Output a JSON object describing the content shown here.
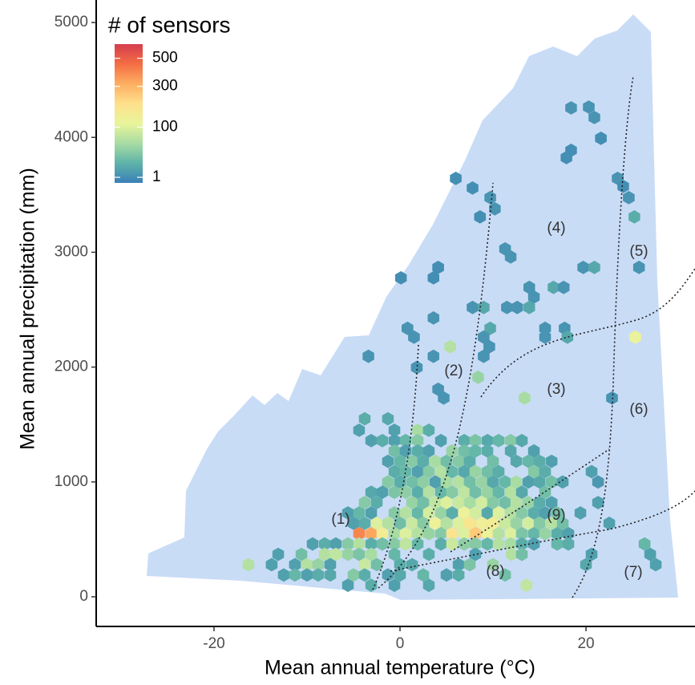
{
  "chart_data": {
    "type": "hexbin",
    "x_label": "Mean annual temperature (°C)",
    "y_label": "Mean annual precipitation (mm)",
    "xlim": [
      -32.67,
      31.72
    ],
    "xticks": [
      -20,
      0,
      20
    ],
    "ylim": [
      -258,
      5196
    ],
    "yticks": [
      0,
      1000,
      2000,
      3000,
      4000,
      5000
    ],
    "grid": false,
    "legend_title": "# of sensors",
    "color_scale": "sqrt",
    "clim": [
      0,
      620
    ],
    "cticks": [
      1,
      100,
      300,
      500
    ],
    "colormap": [
      "#3a7fb8",
      "#5fb3a8",
      "#a8dca3",
      "#e9f59b",
      "#fee08b",
      "#fdae61",
      "#f46d43",
      "#d53e4f"
    ],
    "annotations": [
      "(1)",
      "(2)",
      "(3)",
      "(4)",
      "(5)",
      "(6)",
      "(7)",
      "(8)",
      "(9)"
    ],
    "bins": [
      [
        18.4,
        4257,
        2
      ],
      [
        20.3,
        4264,
        2
      ],
      [
        20.9,
        4173,
        2
      ],
      [
        21.6,
        3992,
        1
      ],
      [
        18.4,
        3887,
        1
      ],
      [
        17.9,
        3824,
        1
      ],
      [
        6.0,
        3643,
        1
      ],
      [
        7.8,
        3559,
        1
      ],
      [
        9.7,
        3475,
        2
      ],
      [
        10.2,
        3378,
        2
      ],
      [
        8.6,
        3308,
        1
      ],
      [
        23.4,
        3643,
        2
      ],
      [
        24.0,
        3573,
        1
      ],
      [
        24.6,
        3475,
        2
      ],
      [
        25.2,
        3308,
        10
      ],
      [
        11.3,
        3029,
        2
      ],
      [
        11.9,
        2959,
        2
      ],
      [
        4.1,
        2868,
        1
      ],
      [
        3.6,
        2777,
        1
      ],
      [
        0.1,
        2777,
        1
      ],
      [
        19.7,
        2868,
        2
      ],
      [
        20.9,
        2868,
        8
      ],
      [
        25.7,
        2868,
        2
      ],
      [
        13.9,
        2694,
        2
      ],
      [
        16.5,
        2694,
        8
      ],
      [
        17.6,
        2694,
        2
      ],
      [
        14.4,
        2610,
        2
      ],
      [
        7.8,
        2519,
        2
      ],
      [
        9.0,
        2519,
        8
      ],
      [
        11.5,
        2519,
        2
      ],
      [
        12.6,
        2519,
        2
      ],
      [
        13.9,
        2519,
        8
      ],
      [
        3.6,
        2428,
        2
      ],
      [
        0.8,
        2338,
        2
      ],
      [
        1.5,
        2261,
        2
      ],
      [
        17.7,
        2338,
        2
      ],
      [
        15.6,
        2338,
        2
      ],
      [
        9.7,
        2338,
        8
      ],
      [
        9.0,
        2261,
        2
      ],
      [
        15.6,
        2261,
        2
      ],
      [
        18.0,
        2261,
        8
      ],
      [
        -3.4,
        2094,
        2
      ],
      [
        5.4,
        2177,
        60
      ],
      [
        3.6,
        2094,
        2
      ],
      [
        9.6,
        2177,
        2
      ],
      [
        9.0,
        2094,
        2
      ],
      [
        25.3,
        2261,
        120
      ],
      [
        1.8,
        1996,
        2
      ],
      [
        8.4,
        1912,
        40
      ],
      [
        4.1,
        1807,
        2
      ],
      [
        4.7,
        1731,
        2
      ],
      [
        13.4,
        1731,
        50
      ],
      [
        22.8,
        1731,
        2
      ],
      [
        -3.8,
        1550,
        10
      ],
      [
        -1.3,
        1550,
        8
      ],
      [
        -4.4,
        1450,
        5
      ],
      [
        -0.6,
        1450,
        5
      ],
      [
        1.9,
        1450,
        50
      ],
      [
        3.1,
        1450,
        10
      ],
      [
        -3.1,
        1360,
        5
      ],
      [
        -1.9,
        1360,
        10
      ],
      [
        -0.6,
        1360,
        5
      ],
      [
        0.6,
        1360,
        15
      ],
      [
        1.9,
        1360,
        30
      ],
      [
        4.4,
        1360,
        5
      ],
      [
        6.9,
        1360,
        10
      ],
      [
        8.1,
        1360,
        25
      ],
      [
        9.4,
        1360,
        8
      ],
      [
        10.6,
        1360,
        15
      ],
      [
        11.9,
        1360,
        30
      ],
      [
        13.1,
        1360,
        8
      ],
      [
        -0.6,
        1270,
        20
      ],
      [
        0.6,
        1270,
        5
      ],
      [
        1.9,
        1270,
        10
      ],
      [
        3.1,
        1270,
        5
      ],
      [
        5.6,
        1270,
        40
      ],
      [
        6.9,
        1270,
        20
      ],
      [
        8.1,
        1270,
        15
      ],
      [
        9.4,
        1270,
        10
      ],
      [
        11.9,
        1270,
        8
      ],
      [
        14.4,
        1270,
        5
      ],
      [
        -1.3,
        1180,
        5
      ],
      [
        0.0,
        1180,
        15
      ],
      [
        1.3,
        1180,
        30
      ],
      [
        2.5,
        1180,
        10
      ],
      [
        3.8,
        1180,
        50
      ],
      [
        5.0,
        1180,
        20
      ],
      [
        6.3,
        1180,
        30
      ],
      [
        7.5,
        1180,
        10
      ],
      [
        10.0,
        1180,
        20
      ],
      [
        12.5,
        1180,
        8
      ],
      [
        13.8,
        1180,
        15
      ],
      [
        15.0,
        1180,
        10
      ],
      [
        16.3,
        1180,
        5
      ],
      [
        -0.6,
        1090,
        10
      ],
      [
        0.6,
        1090,
        15
      ],
      [
        1.9,
        1090,
        5
      ],
      [
        3.1,
        1090,
        30
      ],
      [
        4.4,
        1090,
        60
      ],
      [
        5.6,
        1090,
        15
      ],
      [
        6.9,
        1090,
        8
      ],
      [
        8.1,
        1090,
        40
      ],
      [
        9.4,
        1090,
        20
      ],
      [
        10.6,
        1090,
        10
      ],
      [
        14.4,
        1090,
        30
      ],
      [
        15.6,
        1090,
        10
      ],
      [
        20.6,
        1090,
        5
      ],
      [
        -1.3,
        1000,
        30
      ],
      [
        0.0,
        1000,
        10
      ],
      [
        1.3,
        1000,
        20
      ],
      [
        2.5,
        1000,
        35
      ],
      [
        3.8,
        1000,
        5
      ],
      [
        5.0,
        1000,
        50
      ],
      [
        6.3,
        1000,
        60
      ],
      [
        7.5,
        1000,
        20
      ],
      [
        8.8,
        1000,
        40
      ],
      [
        10.0,
        1000,
        8
      ],
      [
        11.3,
        1000,
        15
      ],
      [
        12.5,
        1000,
        50
      ],
      [
        13.8,
        1000,
        5
      ],
      [
        15.0,
        1000,
        8
      ],
      [
        16.3,
        1000,
        20
      ],
      [
        17.5,
        1000,
        5
      ],
      [
        21.3,
        1000,
        3
      ],
      [
        -3.1,
        910,
        8
      ],
      [
        -1.9,
        910,
        5
      ],
      [
        -0.6,
        910,
        25
      ],
      [
        0.6,
        910,
        35
      ],
      [
        1.9,
        910,
        10
      ],
      [
        3.1,
        910,
        60
      ],
      [
        4.4,
        910,
        15
      ],
      [
        5.6,
        910,
        30
      ],
      [
        6.9,
        910,
        70
      ],
      [
        8.1,
        910,
        20
      ],
      [
        9.4,
        910,
        40
      ],
      [
        10.6,
        910,
        15
      ],
      [
        11.9,
        910,
        60
      ],
      [
        13.1,
        910,
        8
      ],
      [
        15.6,
        910,
        20
      ],
      [
        -3.8,
        820,
        30
      ],
      [
        -2.5,
        820,
        10
      ],
      [
        1.3,
        820,
        40
      ],
      [
        2.5,
        820,
        20
      ],
      [
        3.8,
        820,
        70
      ],
      [
        5.0,
        820,
        100
      ],
      [
        6.3,
        820,
        80
      ],
      [
        7.5,
        820,
        50
      ],
      [
        8.8,
        820,
        90
      ],
      [
        10.0,
        820,
        30
      ],
      [
        11.3,
        820,
        20
      ],
      [
        12.5,
        820,
        60
      ],
      [
        13.8,
        820,
        40
      ],
      [
        15.0,
        820,
        10
      ],
      [
        16.3,
        820,
        5
      ],
      [
        21.3,
        820,
        5
      ],
      [
        -5.6,
        730,
        5
      ],
      [
        -4.4,
        730,
        15
      ],
      [
        -3.1,
        730,
        5
      ],
      [
        -0.6,
        730,
        30
      ],
      [
        0.6,
        730,
        60
      ],
      [
        1.9,
        730,
        15
      ],
      [
        3.1,
        730,
        90
      ],
      [
        4.4,
        730,
        40
      ],
      [
        5.6,
        730,
        10
      ],
      [
        6.9,
        730,
        130
      ],
      [
        8.1,
        730,
        90
      ],
      [
        9.4,
        730,
        8
      ],
      [
        10.6,
        730,
        100
      ],
      [
        11.9,
        730,
        60
      ],
      [
        13.1,
        730,
        30
      ],
      [
        14.4,
        730,
        10
      ],
      [
        15.6,
        730,
        5
      ],
      [
        16.9,
        730,
        20
      ],
      [
        19.4,
        730,
        5
      ],
      [
        -5.0,
        640,
        5
      ],
      [
        -3.8,
        640,
        10
      ],
      [
        -2.5,
        640,
        100
      ],
      [
        -1.3,
        640,
        60
      ],
      [
        0.0,
        640,
        20
      ],
      [
        1.3,
        640,
        80
      ],
      [
        2.5,
        640,
        30
      ],
      [
        3.8,
        640,
        130
      ],
      [
        5.0,
        640,
        60
      ],
      [
        6.3,
        640,
        100
      ],
      [
        7.5,
        640,
        180
      ],
      [
        8.8,
        640,
        140
      ],
      [
        10.0,
        640,
        150
      ],
      [
        11.3,
        640,
        80
      ],
      [
        12.5,
        640,
        40
      ],
      [
        13.8,
        640,
        90
      ],
      [
        15.0,
        640,
        30
      ],
      [
        16.3,
        640,
        60
      ],
      [
        17.5,
        640,
        20
      ],
      [
        22.5,
        640,
        5
      ],
      [
        -4.4,
        550,
        400
      ],
      [
        -3.1,
        550,
        330
      ],
      [
        -1.9,
        550,
        150
      ],
      [
        -0.6,
        550,
        50
      ],
      [
        0.6,
        550,
        100
      ],
      [
        1.9,
        550,
        60
      ],
      [
        3.1,
        550,
        40
      ],
      [
        4.4,
        550,
        30
      ],
      [
        5.6,
        550,
        180
      ],
      [
        6.9,
        550,
        100
      ],
      [
        8.1,
        550,
        250
      ],
      [
        9.4,
        550,
        130
      ],
      [
        10.6,
        550,
        60
      ],
      [
        11.9,
        550,
        100
      ],
      [
        13.1,
        550,
        25
      ],
      [
        14.4,
        550,
        15
      ],
      [
        15.6,
        550,
        40
      ],
      [
        16.9,
        550,
        10
      ],
      [
        18.1,
        550,
        5
      ],
      [
        -9.4,
        460,
        5
      ],
      [
        -8.1,
        460,
        10
      ],
      [
        -6.9,
        460,
        5
      ],
      [
        -5.6,
        460,
        30
      ],
      [
        -4.4,
        460,
        60
      ],
      [
        -3.1,
        460,
        10
      ],
      [
        -1.9,
        460,
        20
      ],
      [
        -0.6,
        460,
        30
      ],
      [
        0.6,
        460,
        70
      ],
      [
        1.9,
        460,
        15
      ],
      [
        4.4,
        460,
        10
      ],
      [
        5.6,
        460,
        80
      ],
      [
        6.9,
        460,
        35
      ],
      [
        8.1,
        460,
        30
      ],
      [
        9.4,
        460,
        15
      ],
      [
        10.6,
        460,
        60
      ],
      [
        11.9,
        460,
        50
      ],
      [
        13.1,
        460,
        10
      ],
      [
        14.4,
        460,
        5
      ],
      [
        16.9,
        460,
        15
      ],
      [
        18.1,
        460,
        10
      ],
      [
        26.3,
        460,
        15
      ],
      [
        -13.1,
        370,
        5
      ],
      [
        -10.6,
        370,
        20
      ],
      [
        -8.1,
        370,
        60
      ],
      [
        -6.9,
        370,
        70
      ],
      [
        -5.6,
        370,
        40
      ],
      [
        -4.4,
        370,
        25
      ],
      [
        -3.1,
        370,
        50
      ],
      [
        -0.6,
        370,
        15
      ],
      [
        3.1,
        370,
        10
      ],
      [
        8.1,
        370,
        5
      ],
      [
        12.0,
        370,
        60
      ],
      [
        13.1,
        370,
        20
      ],
      [
        20.6,
        370,
        5
      ],
      [
        26.9,
        370,
        5
      ],
      [
        -16.3,
        280,
        60
      ],
      [
        -13.8,
        280,
        5
      ],
      [
        -11.3,
        280,
        5
      ],
      [
        -10.0,
        280,
        60
      ],
      [
        -8.8,
        280,
        40
      ],
      [
        -7.5,
        280,
        5
      ],
      [
        -3.8,
        280,
        80
      ],
      [
        -2.5,
        280,
        20
      ],
      [
        0.0,
        280,
        10
      ],
      [
        1.3,
        280,
        8
      ],
      [
        6.3,
        280,
        5
      ],
      [
        7.5,
        280,
        25
      ],
      [
        10.0,
        280,
        40
      ],
      [
        20.0,
        280,
        8
      ],
      [
        27.5,
        280,
        5
      ],
      [
        -12.5,
        190,
        5
      ],
      [
        -11.3,
        190,
        15
      ],
      [
        -10.0,
        190,
        5
      ],
      [
        -8.8,
        190,
        10
      ],
      [
        -7.5,
        190,
        8
      ],
      [
        -5.0,
        190,
        30
      ],
      [
        -3.8,
        190,
        10
      ],
      [
        -1.3,
        190,
        5
      ],
      [
        0.0,
        190,
        8
      ],
      [
        2.5,
        190,
        15
      ],
      [
        5.0,
        190,
        5
      ],
      [
        6.3,
        190,
        10
      ],
      [
        11.3,
        190,
        20
      ],
      [
        -5.6,
        100,
        5
      ],
      [
        -3.1,
        100,
        10
      ],
      [
        -0.6,
        100,
        5
      ],
      [
        3.1,
        100,
        8
      ],
      [
        13.6,
        100,
        70
      ]
    ]
  }
}
